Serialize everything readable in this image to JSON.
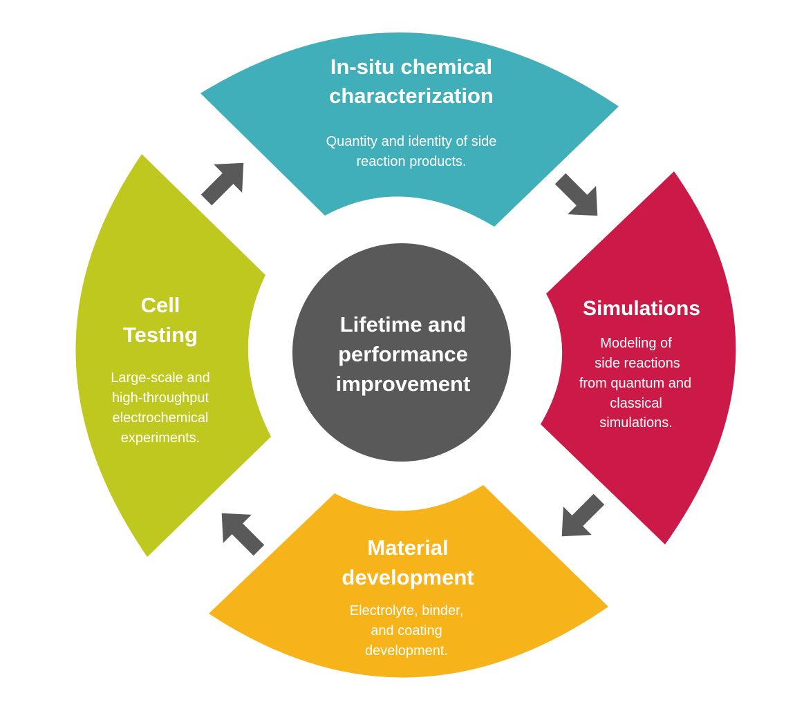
{
  "colors": {
    "teal": "#41AFB9",
    "crimson": "#CB1A47",
    "amber": "#F6B31A",
    "olive": "#BFC81F",
    "center": "#595959",
    "arrow": "#595959",
    "text": "#FFFFFF"
  },
  "center": {
    "line1": "Lifetime and",
    "line2": "performance",
    "line3": "improvement"
  },
  "segments": {
    "top": {
      "title1": "In-situ chemical",
      "title2": "characterization",
      "desc1": "Quantity and identity of side",
      "desc2": "reaction products."
    },
    "right": {
      "title1": "Simulations",
      "desc1": "Modeling of",
      "desc2": "side reactions",
      "desc3": "from quantum and",
      "desc4": "classical",
      "desc5": "simulations."
    },
    "bottom": {
      "title1": "Material",
      "title2": "development",
      "desc1": "Electrolyte, binder,",
      "desc2": "and coating",
      "desc3": "development."
    },
    "left": {
      "title1": "Cell",
      "title2": "Testing",
      "desc1": "Large-scale and",
      "desc2": "high-throughput",
      "desc3": "electrochemical",
      "desc4": "experiments."
    }
  },
  "arrows": {
    "top_left": "arrow-up-right",
    "top_right": "arrow-down-right",
    "bottom_right": "arrow-down-left",
    "bottom_left": "arrow-up-left"
  }
}
